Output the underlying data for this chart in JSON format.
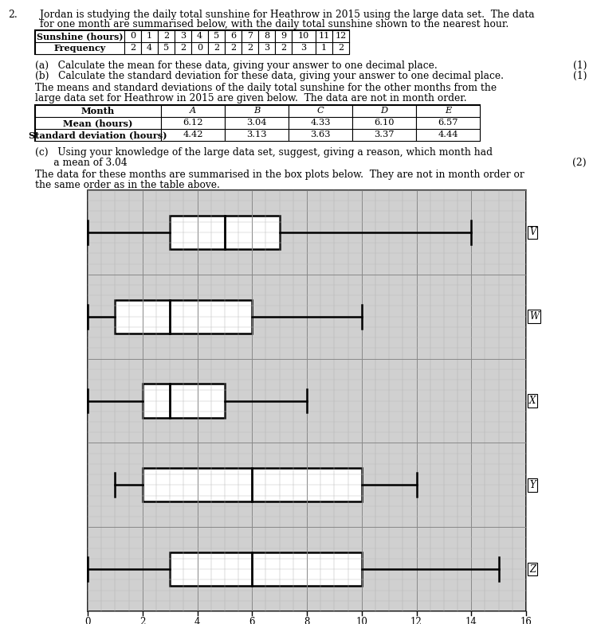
{
  "intro_text_line1": "Jordan is studying the daily total sunshine for Heathrow in 2015 using the large data set.  The data",
  "intro_text_line2": "for one month are summarised below, with the daily total sunshine shown to the nearest hour.",
  "table1_headers": [
    "Sunshine (hours)",
    "0",
    "1",
    "2",
    "3",
    "4",
    "5",
    "6",
    "7",
    "8",
    "9",
    "10",
    "11",
    "12"
  ],
  "table1_row": [
    "Frequency",
    "2",
    "4",
    "5",
    "2",
    "0",
    "2",
    "2",
    "2",
    "3",
    "2",
    "3",
    "1",
    "2"
  ],
  "qa_lines": [
    "(a)   Calculate the mean for these data, giving your answer to one decimal place.",
    "(b)   Calculate the standard deviation for these data, giving your answer to one decimal place."
  ],
  "qa_marks": [
    "(1)",
    "(1)"
  ],
  "middle_text_line1": "The means and standard deviations of the daily total sunshine for the other months from the",
  "middle_text_line2": "large data set for Heathrow in 2015 are given below.  The data are not in month order.",
  "table2_headers": [
    "Month",
    "A",
    "B",
    "C",
    "D",
    "E"
  ],
  "table2_rows": [
    [
      "Mean (hours)",
      "6.12",
      "3.04",
      "4.33",
      "6.10",
      "6.57"
    ],
    [
      "Standard deviation (hours)",
      "4.42",
      "3.13",
      "3.63",
      "3.37",
      "4.44"
    ]
  ],
  "qc_line1": "(c)   Using your knowledge of the large data set, suggest, giving a reason, which month had",
  "qc_line2": "      a mean of 3.04",
  "qc_mark": "(2)",
  "bottom_text_line1": "The data for these months are summarised in the box plots below.  They are not in month order or",
  "bottom_text_line2": "the same order as in the table above.",
  "boxplots": {
    "V": {
      "min": 0,
      "q1": 3,
      "median": 5,
      "q3": 7,
      "max": 14
    },
    "W": {
      "min": 0,
      "q1": 1,
      "median": 3,
      "q3": 6,
      "max": 10
    },
    "X": {
      "min": 0,
      "q1": 2,
      "median": 3,
      "q3": 5,
      "max": 8
    },
    "Y": {
      "min": 1,
      "q1": 2,
      "median": 6,
      "q3": 10,
      "max": 12
    },
    "Z": {
      "min": 0,
      "q1": 3,
      "median": 6,
      "q3": 10,
      "max": 15
    }
  },
  "boxplot_order": [
    "V",
    "W",
    "X",
    "Y",
    "Z"
  ],
  "xaxis_min": 0,
  "xaxis_max": 16,
  "xaxis_ticks": [
    0,
    2,
    4,
    6,
    8,
    10,
    12,
    14,
    16
  ]
}
